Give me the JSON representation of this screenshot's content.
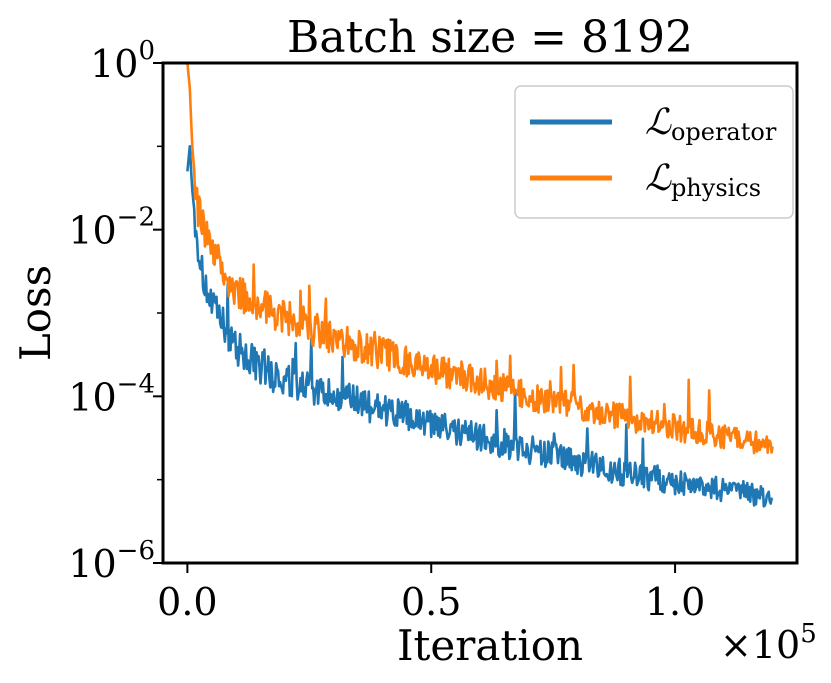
{
  "chart_data": {
    "type": "line",
    "title": "Batch size = 8192",
    "xlabel": "Iteration",
    "ylabel": "Loss",
    "x_scale_label": "×10",
    "x_scale_exponent": "5",
    "yscale": "log",
    "xlim": [
      -5000,
      125000
    ],
    "ylim": [
      1e-06,
      1
    ],
    "x_ticks": [
      {
        "value": 0,
        "label": "0.0"
      },
      {
        "value": 50000,
        "label": "0.5"
      },
      {
        "value": 100000,
        "label": "1.0"
      }
    ],
    "y_ticks": [
      {
        "value": 1,
        "base": "10",
        "exp": "0"
      },
      {
        "value": 0.01,
        "base": "10",
        "exp": "−2"
      },
      {
        "value": 0.0001,
        "base": "10",
        "exp": "−4"
      },
      {
        "value": 1e-06,
        "base": "10",
        "exp": "−6"
      }
    ],
    "legend_position": "top-right",
    "series": [
      {
        "name": "operator",
        "legend_symbol": "ℒ",
        "legend_subscript": "operator",
        "color": "#1f77b4",
        "x": [
          0,
          500,
          1000,
          2000,
          3000,
          5000,
          7500,
          10000,
          15000,
          20000,
          30000,
          40000,
          50000,
          60000,
          70000,
          80000,
          90000,
          100000,
          110000,
          120000
        ],
        "y": [
          0.05,
          0.1,
          0.03,
          0.008,
          0.003,
          0.0012,
          0.0007,
          0.0004,
          0.00022,
          0.00015,
          0.0001,
          7e-05,
          4.5e-05,
          3.2e-05,
          2.3e-05,
          1.6e-05,
          1.2e-05,
          9.5e-06,
          7.5e-06,
          6e-06
        ]
      },
      {
        "name": "physics",
        "legend_symbol": "ℒ",
        "legend_subscript": "physics",
        "color": "#ff7f0e",
        "x": [
          0,
          500,
          1000,
          2000,
          3000,
          5000,
          7500,
          10000,
          15000,
          20000,
          30000,
          40000,
          50000,
          60000,
          70000,
          80000,
          90000,
          100000,
          110000,
          120000
        ],
        "y": [
          1.0,
          0.5,
          0.1,
          0.02,
          0.012,
          0.006,
          0.003,
          0.0018,
          0.0012,
          0.0009,
          0.0005,
          0.00033,
          0.00022,
          0.00015,
          0.0001,
          7.5e-05,
          5.5e-05,
          4.2e-05,
          3.2e-05,
          2.5e-05
        ]
      }
    ]
  }
}
